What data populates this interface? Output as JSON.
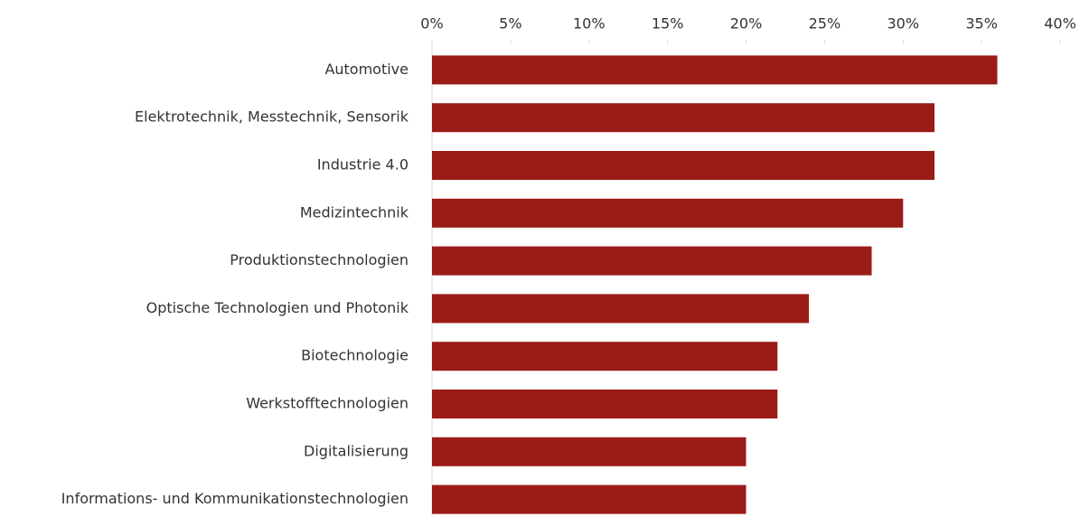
{
  "chart_data": {
    "type": "barh",
    "categories": [
      "Automotive",
      "Elektrotechnik, Messtechnik, Sensorik",
      "Industrie 4.0",
      "Medizintechnik",
      "Produktionstechnologien",
      "Optische Technologien und Photonik",
      "Biotechnologie",
      "Werkstofftechnologien",
      "Digitalisierung",
      "Informations- und Kommunikationstechnologien"
    ],
    "values": [
      36,
      32,
      32,
      30,
      28,
      24,
      22,
      22,
      20,
      20
    ],
    "color": "#9b1b17",
    "xlim": [
      0,
      40
    ],
    "xticks": [
      {
        "value": 0,
        "label": "0%"
      },
      {
        "value": 5,
        "label": "5%"
      },
      {
        "value": 10,
        "label": "10%"
      },
      {
        "value": 15,
        "label": "15%"
      },
      {
        "value": 20,
        "label": "20%"
      },
      {
        "value": 25,
        "label": "25%"
      },
      {
        "value": 30,
        "label": "30%"
      },
      {
        "value": 35,
        "label": "35%"
      },
      {
        "value": 40,
        "label": "40%"
      }
    ],
    "grid": false
  }
}
